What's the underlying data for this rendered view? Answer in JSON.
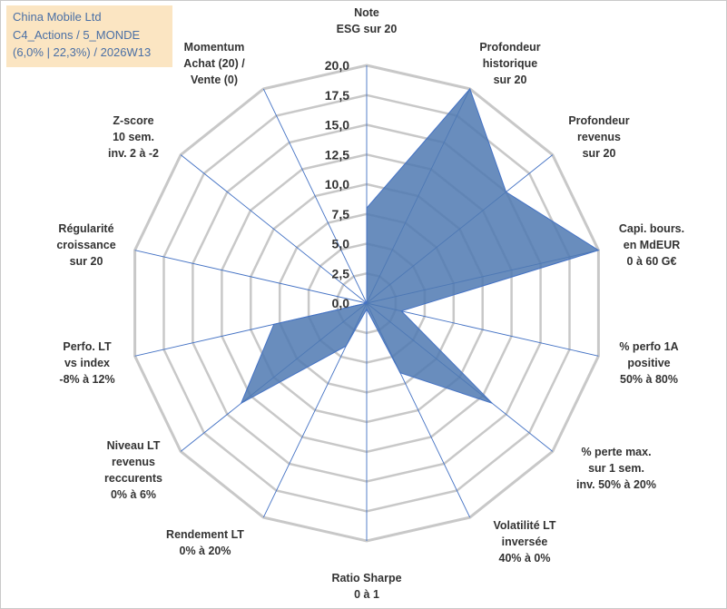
{
  "title": {
    "line1": "China Mobile Ltd",
    "line2": "C4_Actions / 5_MONDE",
    "line3": "(6,0% | 22,3%) / 2026W13"
  },
  "colors": {
    "grid": "#c8c8c8",
    "spoke": "#4472c4",
    "fill": "#4f79b1",
    "title_bg": "#fbe5c2",
    "title_text": "#4a6fa5"
  },
  "chart_data": {
    "type": "radar",
    "rmin": 0,
    "rmax": 20,
    "ticks": [
      "0,0",
      "2,5",
      "5,0",
      "7,5",
      "10,0",
      "12,5",
      "15,0",
      "17,5",
      "20,0"
    ],
    "axes": [
      {
        "label": [
          "Note",
          "ESG sur 20"
        ],
        "value": 8.0
      },
      {
        "label": [
          "Profondeur",
          "historique",
          "sur 20"
        ],
        "value": 20.0
      },
      {
        "label": [
          "Profondeur",
          "revenus",
          "sur 20"
        ],
        "value": 15.0
      },
      {
        "label": [
          "Capi. bours.",
          "en MdEUR",
          "0 à 60 G€"
        ],
        "value": 20.0
      },
      {
        "label": [
          "% perfo 1A",
          "positive",
          "50% à 80%"
        ],
        "value": 3.0
      },
      {
        "label": [
          "% perte max.",
          "sur 1 sem.",
          "inv. 50% à 20%"
        ],
        "value": 13.5
      },
      {
        "label": [
          "Volatilité LT",
          "inversée",
          "40% à 0%"
        ],
        "value": 6.5
      },
      {
        "label": [
          "Ratio Sharpe",
          "0 à 1"
        ],
        "value": 0.5
      },
      {
        "label": [
          "Rendement LT",
          "0% à 20%"
        ],
        "value": 4.0
      },
      {
        "label": [
          "Niveau LT",
          "revenus",
          "reccurents",
          "0% à 6%"
        ],
        "value": 13.5
      },
      {
        "label": [
          "Perfo. LT",
          "vs index",
          "-8% à 12%"
        ],
        "value": 8.0
      },
      {
        "label": [
          "Régularité",
          "croissance",
          "sur 20"
        ],
        "value": 0.0
      },
      {
        "label": [
          "Z-score",
          "10 sem.",
          "inv. 2 à -2"
        ],
        "value": 0.0
      },
      {
        "label": [
          "Momentum",
          "Achat (20) /",
          "Vente (0)"
        ],
        "value": 0.0
      }
    ]
  }
}
